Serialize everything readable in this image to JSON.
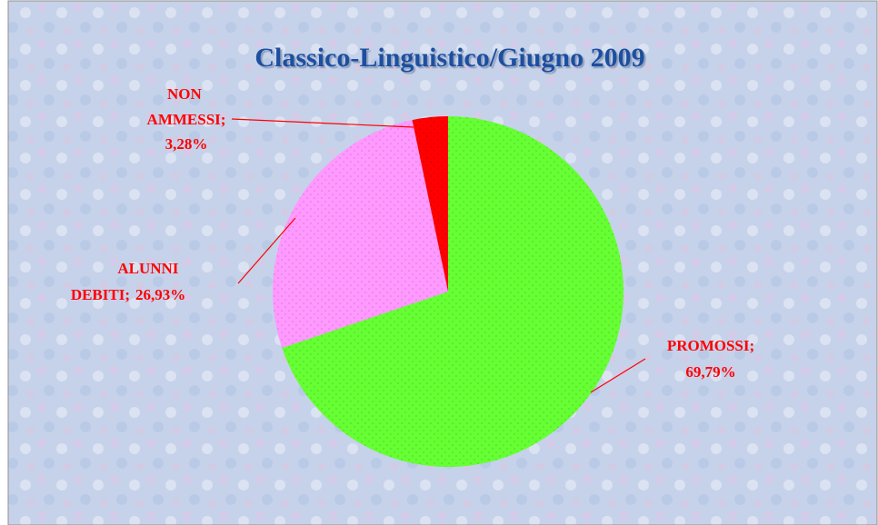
{
  "chart_data": {
    "type": "pie",
    "title": "Classico-Linguistico/Giugno 2009",
    "categories": [
      "PROMOSSI;",
      "ALUNNI DEBITI;",
      "NON AMMESSI;"
    ],
    "values": [
      69.79,
      26.93,
      3.28
    ],
    "value_labels": [
      "69,79%",
      "26,93%",
      "3,28%"
    ],
    "colors": [
      "#66ff33",
      "#ff99ff",
      "#ff0000"
    ]
  }
}
